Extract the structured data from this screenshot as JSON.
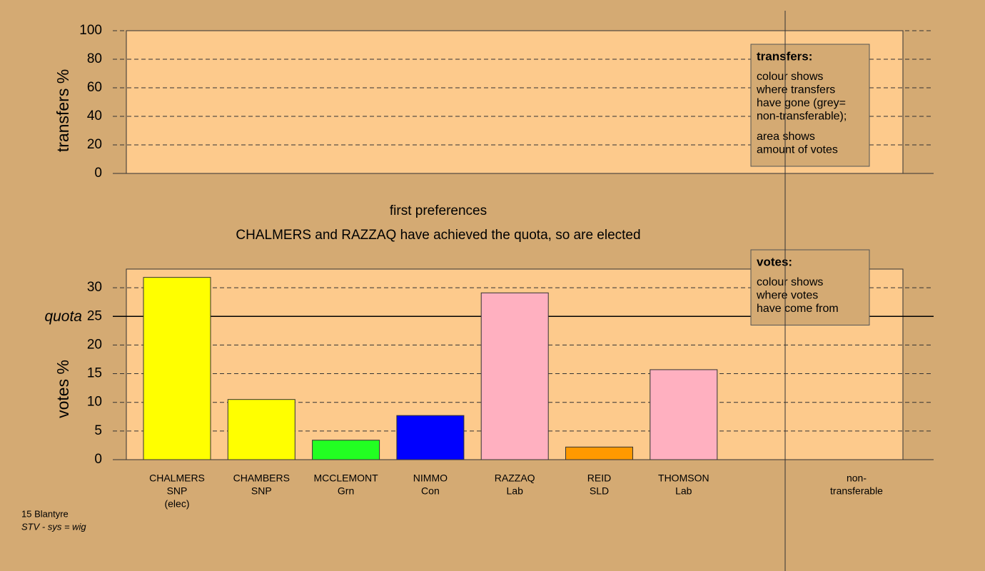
{
  "chart_data": [
    {
      "type": "bar",
      "ylabel": "transfers %",
      "ylim": [
        0,
        100
      ],
      "yticks": [
        0,
        20,
        40,
        60,
        80,
        100
      ],
      "key": {
        "title": "transfers:",
        "paragraphs": [
          [
            "colour shows",
            "where transfers",
            "have gone (grey=",
            "non-transferable);"
          ],
          [
            "area shows",
            "amount of votes"
          ]
        ]
      }
    },
    {
      "type": "bar",
      "title": "first preferences",
      "annotation": "CHALMERS and RAZZAQ have achieved the quota, so are elected",
      "ylabel": "votes %",
      "ylim": [
        0,
        33.25
      ],
      "yticks": [
        0,
        5,
        10,
        15,
        20,
        25,
        30
      ],
      "quota": {
        "value": 25,
        "label": "quota"
      },
      "categories": [
        [
          "CHALMERS",
          "SNP",
          "(elec)"
        ],
        [
          "CHAMBERS",
          "SNP"
        ],
        [
          "MCCLEMONT",
          "Grn"
        ],
        [
          "NIMMO",
          "Con"
        ],
        [
          "RAZZAQ",
          "Lab"
        ],
        [
          "REID",
          "SLD"
        ],
        [
          "THOMSON",
          "Lab"
        ],
        [
          "non-",
          "transferable"
        ]
      ],
      "values": [
        31.8,
        10.5,
        3.4,
        7.7,
        29.1,
        2.2,
        15.7,
        null
      ],
      "colors": [
        "#ffff00",
        "#ffff00",
        "#22ff22",
        "#0000ff",
        "#ffb0c0",
        "#ff9900",
        "#ffb0c0",
        null
      ],
      "key": {
        "title": "votes:",
        "paragraphs": [
          [
            "colour shows",
            "where votes",
            "have come from"
          ]
        ]
      }
    }
  ],
  "footer": [
    "15 Blantyre",
    "STV - sys = wig"
  ]
}
